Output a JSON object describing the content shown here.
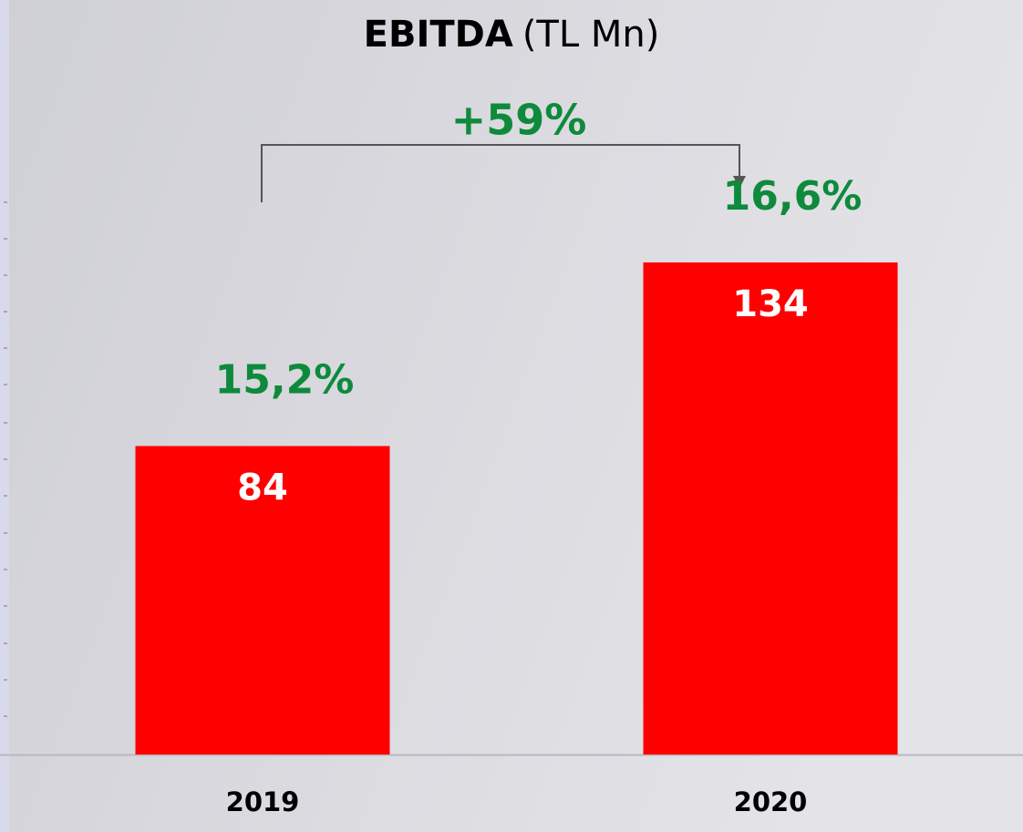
{
  "chart_data": {
    "type": "bar",
    "title": "EBITDA",
    "title_unit": "(TL Mn)",
    "growth_label": "+59%",
    "categories": [
      "2019",
      "2020"
    ],
    "values": [
      84,
      134
    ],
    "margin_labels": [
      "15,2%",
      "16,6%"
    ],
    "color": "#ff0000",
    "ylim": [
      0,
      200
    ]
  }
}
